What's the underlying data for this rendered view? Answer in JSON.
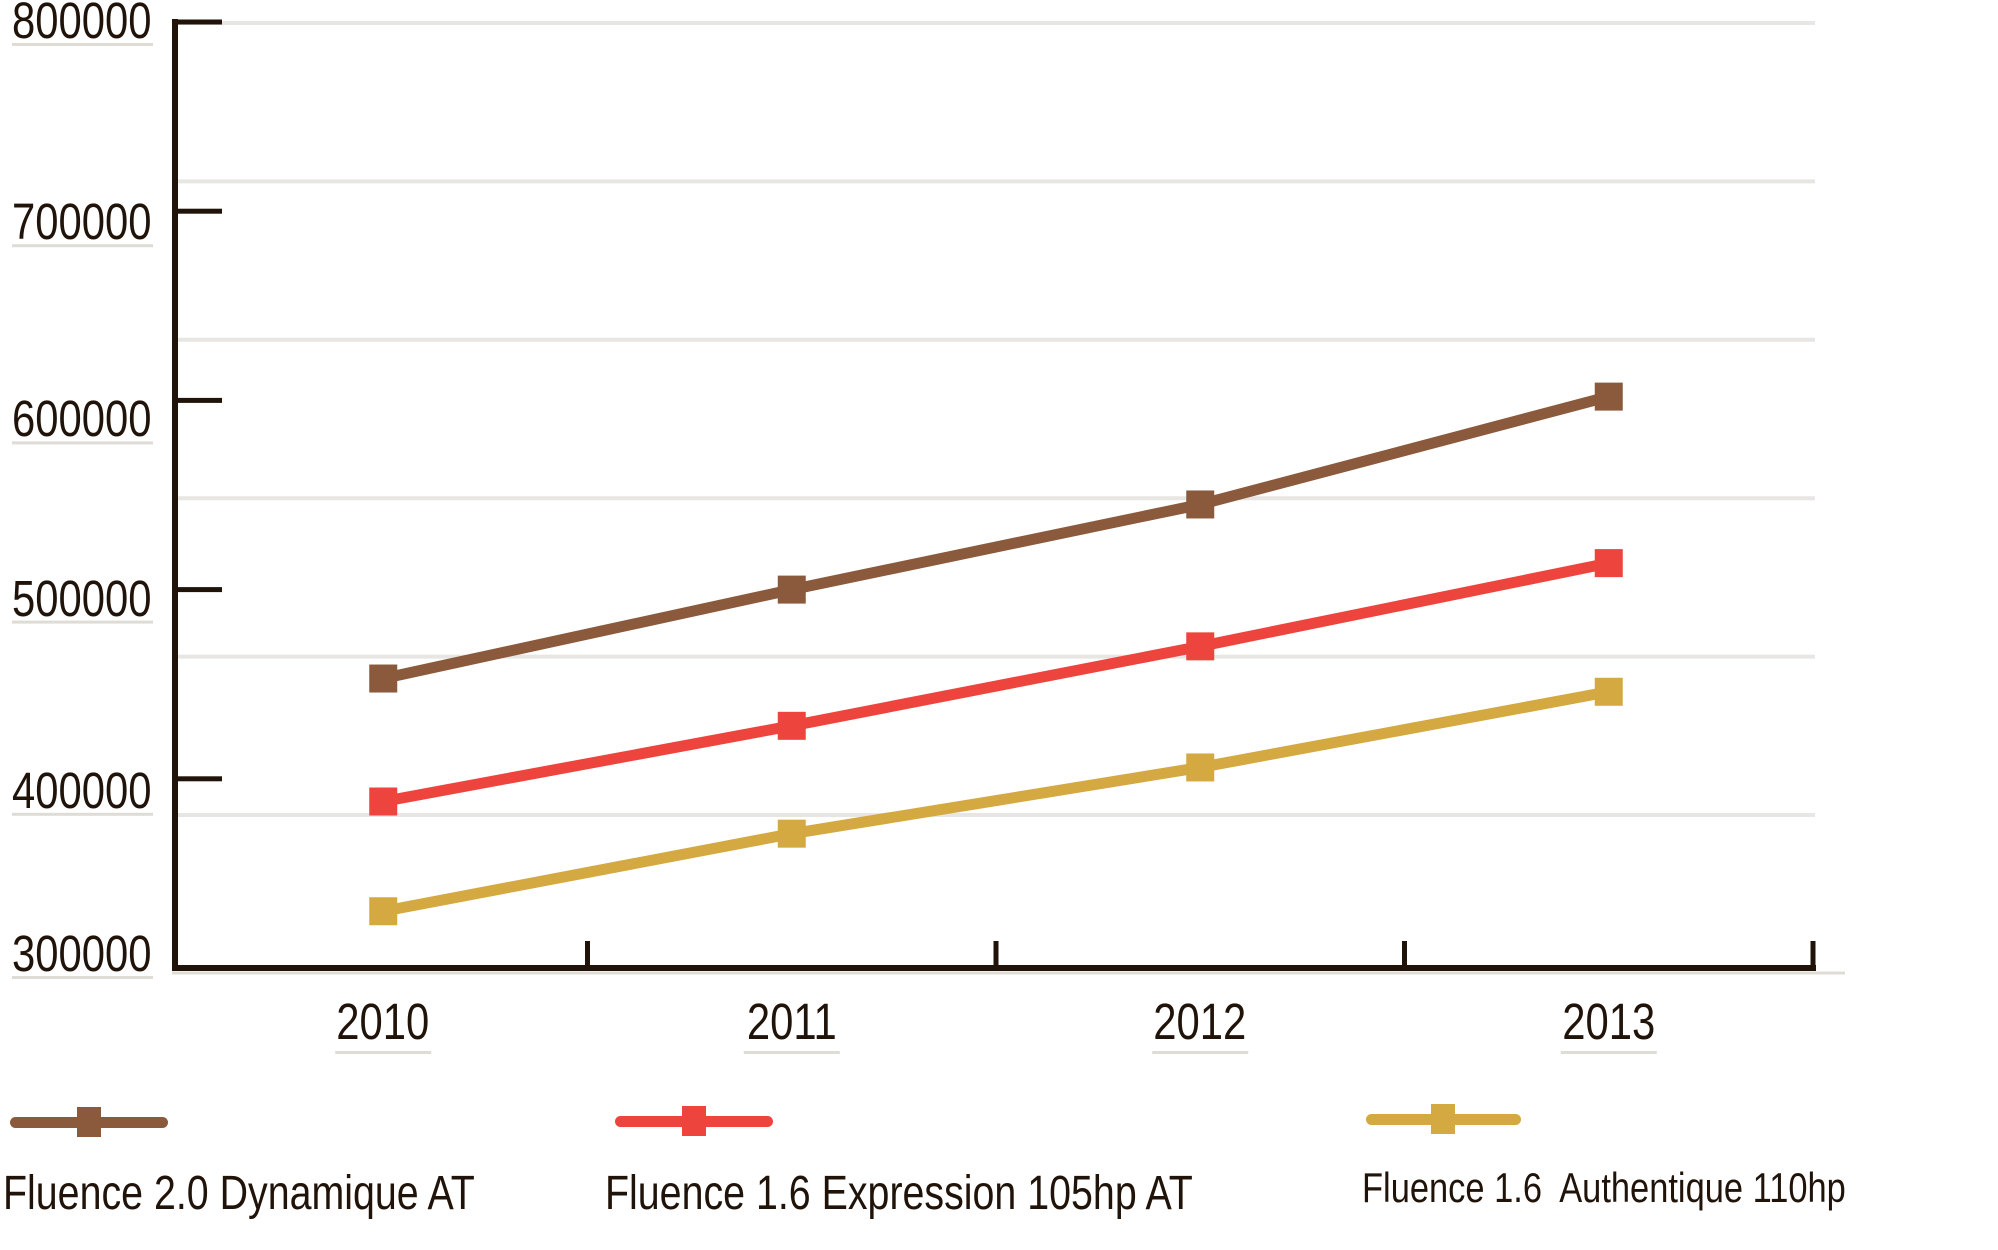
{
  "chart_data": {
    "type": "line",
    "categories": [
      "2010",
      "2011",
      "2012",
      "2013"
    ],
    "series": [
      {
        "name": "Fluence 2.0 Dynamique AT",
        "color": "#8B5A3C",
        "values": [
          453000,
          500000,
          545000,
          602000
        ]
      },
      {
        "name": "Fluence 1.6 Expression 105hp AT",
        "color": "#EE443E",
        "values": [
          388000,
          428000,
          470000,
          514000
        ]
      },
      {
        "name": "Fluence 1.6  Authentique 110hp",
        "color": "#D4A942",
        "values": [
          330000,
          371000,
          406000,
          446000
        ]
      }
    ],
    "title": "",
    "xlabel": "",
    "ylabel": "",
    "ylim": [
      300000,
      800000
    ],
    "yticks": [
      800000,
      700000,
      600000,
      500000,
      400000,
      300000
    ],
    "ytick_labels": [
      "800000",
      "700000",
      "600000",
      "500000",
      "400000",
      "300000"
    ],
    "grid": "horizontal-6-even-intervals",
    "legend_position": "bottom",
    "marker": "square"
  },
  "legend": {
    "items": [
      {
        "label": "Fluence 2.0 Dynamique AT",
        "color": "#8B5A3C"
      },
      {
        "label": "Fluence 1.6 Expression 105hp AT",
        "color": "#EE443E"
      },
      {
        "label": "Fluence 1.6  Authentique 110hp",
        "color": "#D4A942"
      }
    ]
  },
  "colors": {
    "axis": "#20130A",
    "text": "#20130A",
    "gridline": "#E8E6E2",
    "shadow": "#DFDCD6",
    "background": "#FFFFFF"
  }
}
